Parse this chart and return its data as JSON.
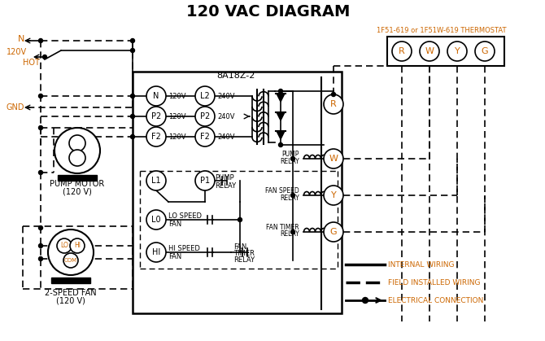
{
  "title": "120 VAC DIAGRAM",
  "bg": "#ffffff",
  "orange": "#cc6600",
  "black": "#000000",
  "thermostat_label": "1F51-619 or 1F51W-619 THERMOSTAT",
  "controller_label": "8A18Z-2",
  "thermostat_terminals": [
    "R",
    "W",
    "Y",
    "G"
  ],
  "left_circ_labels": [
    "N",
    "P2",
    "F2"
  ],
  "right_circ_labels": [
    "L2",
    "P2",
    "F2"
  ],
  "bottom_circ_labels": [
    "L1",
    "P1",
    "L0",
    "HI"
  ],
  "relay_right_labels": [
    "R",
    "W",
    "Y",
    "G"
  ],
  "legend_items": [
    "INTERNAL WIRING",
    "FIELD INSTALLED WIRING",
    "ELECTRICAL CONNECTION"
  ],
  "pump_motor_text": [
    "PUMP MOTOR",
    "(120 V)"
  ],
  "fan_text": [
    "2-SPEED FAN",
    "(120 V)"
  ],
  "N_label": "N",
  "v120_label": "120V",
  "hot_label": "HOT",
  "gnd_label": "GND",
  "com_label": "COM",
  "lo_label": "LO",
  "hi_label": "HI"
}
